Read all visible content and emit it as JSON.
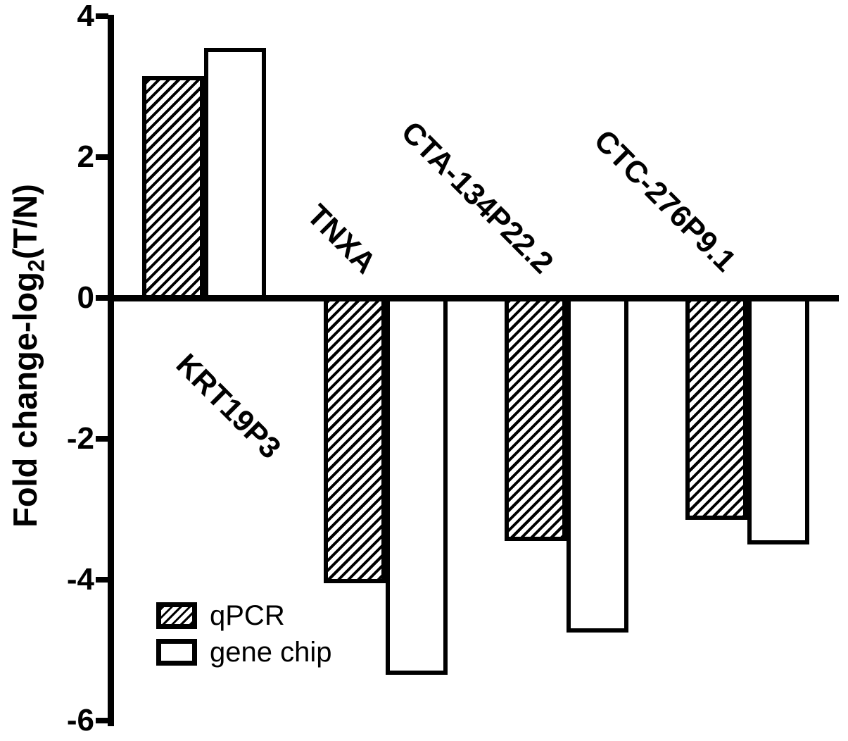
{
  "figure": {
    "background_color": "#ffffff",
    "ink_color": "#000000"
  },
  "chart_data": {
    "type": "bar",
    "bar_orientation": "vertical",
    "title": "",
    "xlabel": "",
    "ylabel": "Fold change-log2(T/N)",
    "ylabel_parts": {
      "prefix": "Fold change-log",
      "subscript": "2",
      "suffix": "(T/N)"
    },
    "categories": [
      "KRT19P3",
      "TNXA",
      "CTA-134P22.2",
      "CTC-276P9.1"
    ],
    "series": [
      {
        "name": "qPCR",
        "fill": "black-diagonal-hatch",
        "values": [
          3.15,
          -4.05,
          -3.45,
          -3.15
        ]
      },
      {
        "name": "gene chip",
        "fill": "white",
        "values": [
          3.55,
          -5.35,
          -4.75,
          -3.5
        ]
      }
    ],
    "yticks": [
      4,
      2,
      0,
      -2,
      -4,
      -6
    ],
    "ylim": [
      -6,
      4
    ],
    "grid": false,
    "legend_position": "inside-lower-left"
  }
}
